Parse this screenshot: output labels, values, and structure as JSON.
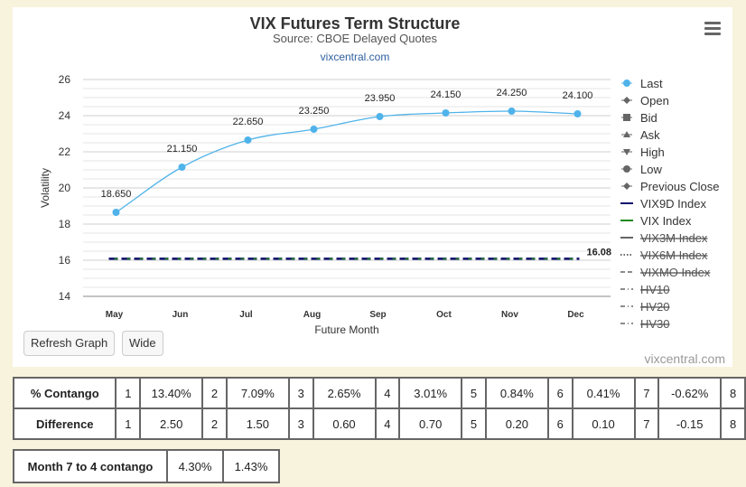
{
  "chart_data": {
    "type": "line",
    "title": "VIX Futures Term Structure",
    "subtitle": "Source: CBOE Delayed Quotes",
    "subtitle_link": "vixcentral.com",
    "xlabel": "Future Month",
    "ylabel": "Volatility",
    "categories": [
      "May",
      "Jun",
      "Jul",
      "Aug",
      "Sep",
      "Oct",
      "Nov",
      "Dec"
    ],
    "ylim": [
      14,
      26
    ],
    "yticks": [
      14,
      16,
      18,
      20,
      22,
      24,
      26
    ],
    "grid": true,
    "legend_position": "right",
    "series": [
      {
        "name": "Last",
        "values": [
          18.65,
          21.15,
          22.65,
          23.25,
          23.95,
          24.15,
          24.25,
          24.1
        ],
        "labels": [
          "18.650",
          "21.150",
          "22.650",
          "23.250",
          "23.950",
          "24.150",
          "24.250",
          "24.100"
        ],
        "color": "#4fb3ea"
      },
      {
        "name": "VIX9D Index",
        "value": 16.08,
        "label": "16.08",
        "color": "#0b0b6b",
        "style": "dashed"
      },
      {
        "name": "VIX Index",
        "value": 16.08,
        "color": "#1e8a1e",
        "style": "dashed"
      }
    ],
    "legend": [
      {
        "name": "Last",
        "symbol": "circle",
        "color": "#4fb3ea",
        "active": true
      },
      {
        "name": "Open",
        "symbol": "diamond",
        "color": "#666666",
        "active": true
      },
      {
        "name": "Bid",
        "symbol": "square",
        "color": "#666666",
        "active": true
      },
      {
        "name": "Ask",
        "symbol": "triangle",
        "color": "#666666",
        "active": true
      },
      {
        "name": "High",
        "symbol": "triangle-down",
        "color": "#666666",
        "active": true
      },
      {
        "name": "Low",
        "symbol": "circle",
        "color": "#666666",
        "active": true
      },
      {
        "name": "Previous Close",
        "symbol": "diamond",
        "color": "#666666",
        "active": true
      },
      {
        "name": "VIX9D Index",
        "symbol": "line",
        "color": "#0b0b6b",
        "active": true
      },
      {
        "name": "VIX Index",
        "symbol": "line",
        "color": "#1e8a1e",
        "active": true
      },
      {
        "name": "VIX3M Index",
        "symbol": "line",
        "color": "#666666",
        "active": false
      },
      {
        "name": "VIX6M Index",
        "symbol": "dotted",
        "color": "#333333",
        "active": false
      },
      {
        "name": "VIXMO Index",
        "symbol": "dashed",
        "color": "#666666",
        "active": false
      },
      {
        "name": "HV10",
        "symbol": "dashdot",
        "color": "#666666",
        "active": false
      },
      {
        "name": "HV20",
        "symbol": "dashdot",
        "color": "#666666",
        "active": false
      },
      {
        "name": "HV30",
        "symbol": "dashdot",
        "color": "#666666",
        "active": false
      }
    ]
  },
  "buttons": {
    "refresh": "Refresh Graph",
    "wide": "Wide"
  },
  "credit": "vixcentral.com",
  "contango_table": {
    "rows": [
      {
        "label": "% Contango",
        "cells": [
          {
            "n": "1",
            "v": "13.40%"
          },
          {
            "n": "2",
            "v": "7.09%"
          },
          {
            "n": "3",
            "v": "2.65%"
          },
          {
            "n": "4",
            "v": "3.01%"
          },
          {
            "n": "5",
            "v": "0.84%"
          },
          {
            "n": "6",
            "v": "0.41%"
          },
          {
            "n": "7",
            "v": "-0.62%"
          }
        ],
        "last": "8"
      },
      {
        "label": "Difference",
        "cells": [
          {
            "n": "1",
            "v": "2.50"
          },
          {
            "n": "2",
            "v": "1.50"
          },
          {
            "n": "3",
            "v": "0.60"
          },
          {
            "n": "4",
            "v": "0.70"
          },
          {
            "n": "5",
            "v": "0.20"
          },
          {
            "n": "6",
            "v": "0.10"
          },
          {
            "n": "7",
            "v": "-0.15"
          }
        ],
        "last": "8"
      }
    ]
  },
  "month74_table": {
    "label": "Month 7 to 4 contango",
    "values": [
      "4.30%",
      "1.43%"
    ]
  }
}
